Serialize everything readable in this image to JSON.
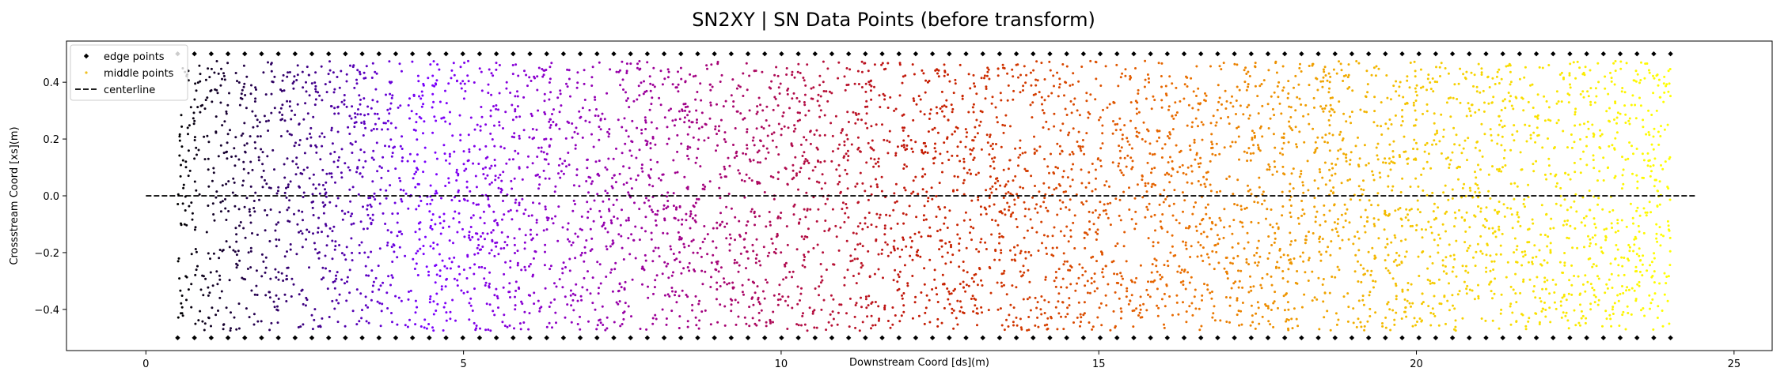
{
  "chart_data": {
    "type": "scatter",
    "title": "SN2XY | SN Data Points (before transform)",
    "xlabel": "Downstream Coord [ds](m)",
    "ylabel": "Crossstream Coord [xs](m)",
    "xlim": [
      -1.25,
      25.6
    ],
    "ylim": [
      -0.545,
      0.545
    ],
    "xticks": [
      0,
      5,
      10,
      15,
      20,
      25
    ],
    "yticks": [
      -0.4,
      -0.2,
      0.0,
      0.2,
      0.4
    ],
    "xtick_labels": [
      "0",
      "5",
      "10",
      "15",
      "20",
      "25"
    ],
    "ytick_labels": [
      "−0.4",
      "−0.2",
      "0.0",
      "0.2",
      "0.4"
    ],
    "grid": false,
    "legend_position": "top-left",
    "series": [
      {
        "name": "edge points",
        "marker": "diamond",
        "color": "#000000",
        "x_range": [
          0.5,
          24.0
        ],
        "y_values": [
          -0.5,
          0.5
        ],
        "count_per_edge": 90
      },
      {
        "name": "middle points",
        "marker": "circle",
        "colormap": "gnuplot",
        "x_range": [
          0.5,
          24.0
        ],
        "y_range": [
          -0.475,
          0.475
        ],
        "color_gradient": [
          "#000000",
          "#7a00ff",
          "#a0008e",
          "#c41a00",
          "#e86a00",
          "#f5c800",
          "#ffff00"
        ],
        "approx_count": 6000
      },
      {
        "name": "centerline",
        "style": "dashed",
        "color": "#000000",
        "x": [
          0.0,
          24.4
        ],
        "y": [
          0.0,
          0.0
        ]
      }
    ]
  }
}
